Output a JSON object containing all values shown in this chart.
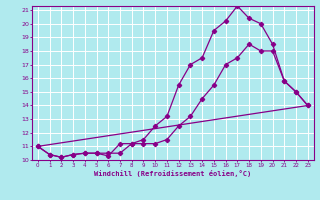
{
  "xlabel": "Windchill (Refroidissement éolien,°C)",
  "bg_color": "#b0eaee",
  "grid_color": "#ffffff",
  "line_color": "#880088",
  "xlim": [
    -0.5,
    23.5
  ],
  "ylim": [
    10,
    21.3
  ],
  "xticks": [
    0,
    1,
    2,
    3,
    4,
    5,
    6,
    7,
    8,
    9,
    10,
    11,
    12,
    13,
    14,
    15,
    16,
    17,
    18,
    19,
    20,
    21,
    22,
    23
  ],
  "yticks": [
    10,
    11,
    12,
    13,
    14,
    15,
    16,
    17,
    18,
    19,
    20,
    21
  ],
  "line1_x": [
    0,
    1,
    2,
    3,
    4,
    5,
    6,
    7,
    8,
    9,
    10,
    11,
    12,
    13,
    14,
    15,
    16,
    17,
    18,
    19,
    20,
    21,
    22,
    23
  ],
  "line1_y": [
    11.0,
    10.4,
    10.2,
    10.4,
    10.5,
    10.5,
    10.5,
    10.5,
    11.2,
    11.2,
    11.2,
    11.5,
    12.5,
    13.2,
    14.5,
    15.5,
    17.0,
    17.5,
    18.5,
    18.0,
    18.0,
    15.8,
    15.0,
    14.0
  ],
  "line2_x": [
    0,
    1,
    2,
    3,
    4,
    5,
    6,
    7,
    8,
    9,
    10,
    11,
    12,
    13,
    14,
    15,
    16,
    17,
    18,
    19,
    20,
    21,
    22,
    23
  ],
  "line2_y": [
    11.0,
    10.4,
    10.2,
    10.4,
    10.5,
    10.5,
    10.3,
    11.2,
    11.2,
    11.5,
    12.5,
    13.2,
    15.5,
    17.0,
    17.5,
    19.5,
    20.2,
    21.3,
    20.4,
    20.0,
    18.5,
    15.8,
    15.0,
    14.0
  ],
  "line3_x": [
    0,
    23
  ],
  "line3_y": [
    11.0,
    14.0
  ]
}
